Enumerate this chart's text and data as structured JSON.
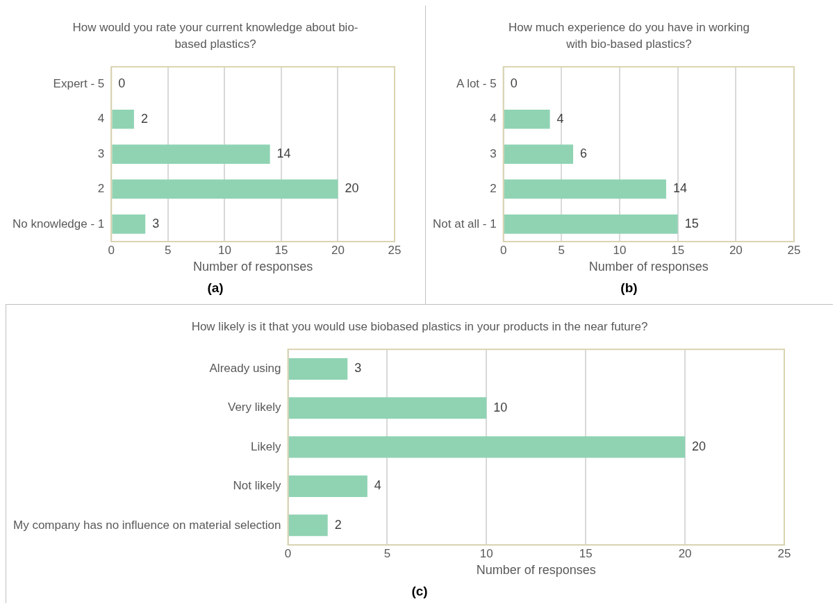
{
  "chart_data": [
    {
      "type": "bar",
      "orientation": "horizontal",
      "title": "How would you rate your current knowledge about bio-based plastics?",
      "xlabel": "Number of responses",
      "categories": [
        "Expert - 5",
        "4",
        "3",
        "2",
        "No knowledge - 1"
      ],
      "values": [
        0,
        2,
        14,
        20,
        3
      ],
      "color": "#8fd3b3",
      "xlim": [
        0,
        25
      ],
      "xticks": [
        0,
        5,
        10,
        15,
        20,
        25
      ],
      "grid": "x",
      "legend": false,
      "data_labels": true,
      "annotations": [
        "(a)"
      ]
    },
    {
      "type": "bar",
      "orientation": "horizontal",
      "title": "How much experience do you have in working with bio-based plastics?",
      "xlabel": "Number of responses",
      "categories": [
        "A lot - 5",
        "4",
        "3",
        "2",
        "Not at all - 1"
      ],
      "values": [
        0,
        4,
        6,
        14,
        15
      ],
      "color": "#8fd3b3",
      "xlim": [
        0,
        25
      ],
      "xticks": [
        0,
        5,
        10,
        15,
        20,
        25
      ],
      "grid": "x",
      "legend": false,
      "data_labels": true,
      "annotations": [
        "(b)"
      ]
    },
    {
      "type": "bar",
      "orientation": "horizontal",
      "title": "How likely is it that you would use biobased plastics in your products in the near future?",
      "xlabel": "Number of responses",
      "categories": [
        "Already using",
        "Very likely",
        "Likely",
        "Not likely",
        "My company has no influence on material selection"
      ],
      "values": [
        3,
        10,
        20,
        4,
        2
      ],
      "color": "#8fd3b3",
      "xlim": [
        0,
        25
      ],
      "xticks": [
        0,
        5,
        10,
        15,
        20,
        25
      ],
      "grid": "x",
      "legend": false,
      "data_labels": true,
      "annotations": [
        "(c)"
      ]
    }
  ]
}
